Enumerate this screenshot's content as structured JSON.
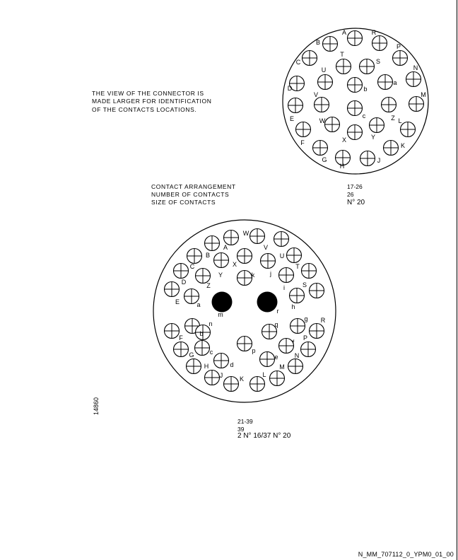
{
  "note": "THE VIEW OF THE CONNECTOR IS\nMADE LARGER FOR IDENTIFICATION\nOF THE CONTACTS LOCATIONS.",
  "spec_labels": {
    "arrangement": "CONTACT ARRANGEMENT",
    "count": "NUMBER OF CONTACTS",
    "size": "SIZE OF CONTACTS"
  },
  "connector_a": {
    "arrangement": "17-26",
    "count": "26",
    "size": "N° 20",
    "contacts": [
      {
        "id": "A",
        "big": false
      },
      {
        "id": "R",
        "big": false
      },
      {
        "id": "B",
        "big": false
      },
      {
        "id": "P",
        "big": false
      },
      {
        "id": "C",
        "big": false
      },
      {
        "id": "T",
        "big": false
      },
      {
        "id": "S",
        "big": false
      },
      {
        "id": "N",
        "big": false
      },
      {
        "id": "U",
        "big": false
      },
      {
        "id": "D",
        "big": false
      },
      {
        "id": "b",
        "big": false
      },
      {
        "id": "a",
        "big": false
      },
      {
        "id": "M",
        "big": false
      },
      {
        "id": "V",
        "big": false
      },
      {
        "id": "E",
        "big": false
      },
      {
        "id": "c",
        "big": false
      },
      {
        "id": "Z",
        "big": false
      },
      {
        "id": "W",
        "big": false
      },
      {
        "id": "L",
        "big": false
      },
      {
        "id": "X",
        "big": false
      },
      {
        "id": "Y",
        "big": false
      },
      {
        "id": "F",
        "big": false
      },
      {
        "id": "K",
        "big": false
      },
      {
        "id": "G",
        "big": false
      },
      {
        "id": "H",
        "big": false
      },
      {
        "id": "J",
        "big": false
      }
    ]
  },
  "connector_b": {
    "arrangement": "21-39",
    "count": "39",
    "size": "2 N° 16/37 N° 20",
    "contacts": [
      {
        "id": "W",
        "big": false
      },
      {
        "id": "A",
        "big": false
      },
      {
        "id": "V",
        "big": false
      },
      {
        "id": "B",
        "big": false
      },
      {
        "id": "U",
        "big": false
      },
      {
        "id": "X",
        "big": false
      },
      {
        "id": "C",
        "big": false
      },
      {
        "id": "Y",
        "big": false
      },
      {
        "id": "j",
        "big": false
      },
      {
        "id": "T",
        "big": false
      },
      {
        "id": "k",
        "big": false
      },
      {
        "id": "D",
        "big": false
      },
      {
        "id": "i",
        "big": false
      },
      {
        "id": "S",
        "big": false
      },
      {
        "id": "Z",
        "big": false
      },
      {
        "id": "E",
        "big": false
      },
      {
        "id": "a",
        "big": false
      },
      {
        "id": "h",
        "big": false
      },
      {
        "id": "m",
        "big": true
      },
      {
        "id": "r",
        "big": true
      },
      {
        "id": "n",
        "big": false
      },
      {
        "id": "g",
        "big": false
      },
      {
        "id": "R",
        "big": false
      },
      {
        "id": "q",
        "big": false
      },
      {
        "id": "F",
        "big": false
      },
      {
        "id": "b",
        "big": false
      },
      {
        "id": "P",
        "big": false
      },
      {
        "id": "f",
        "big": false
      },
      {
        "id": "G",
        "big": false
      },
      {
        "id": "c",
        "big": false
      },
      {
        "id": "p",
        "big": false
      },
      {
        "id": "e",
        "big": false
      },
      {
        "id": "N",
        "big": false
      },
      {
        "id": "H",
        "big": false
      },
      {
        "id": "d",
        "big": false
      },
      {
        "id": "M",
        "big": false
      },
      {
        "id": "J",
        "big": false
      },
      {
        "id": "L",
        "big": false
      },
      {
        "id": "K",
        "big": false
      }
    ]
  },
  "side_ref": "14860",
  "doc_ref": "N_MM_707112_0_YPM0_01_00"
}
